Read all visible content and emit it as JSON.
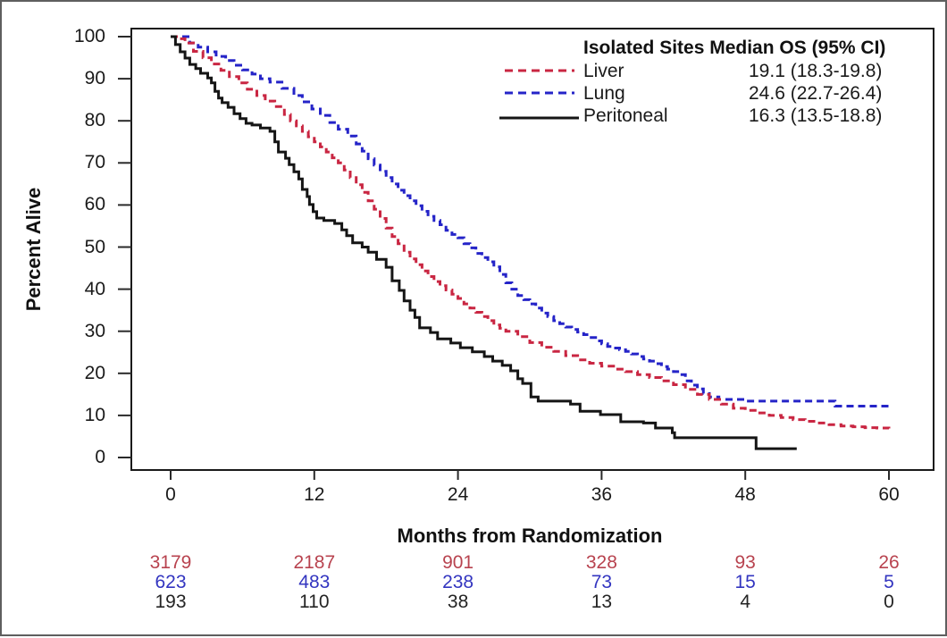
{
  "chart_data": {
    "type": "line",
    "subtype": "kaplan-meier-step",
    "title": "",
    "xlabel": "Months from Randomization",
    "ylabel": "Percent Alive",
    "xlim": [
      0,
      60
    ],
    "ylim": [
      0,
      100
    ],
    "x_ticks": [
      0,
      12,
      24,
      36,
      48,
      60
    ],
    "y_ticks": [
      100,
      90,
      80,
      70,
      60,
      50,
      40,
      30,
      20,
      10,
      0
    ],
    "grid": false,
    "legend_position": "top-right-inside",
    "legend": {
      "header": "Isolated Sites Median OS (95% CI)",
      "rows": [
        {
          "label": "Liver",
          "median_os": "19.1 (18.3-19.8)"
        },
        {
          "label": "Lung",
          "median_os": "24.6 (22.7-26.4)"
        },
        {
          "label": "Peritoneal",
          "median_os": "16.3 (13.5-18.8)"
        }
      ]
    },
    "series": [
      {
        "name": "Lung",
        "color": "#2524C8",
        "style": "dashed",
        "points": [
          [
            0,
            100
          ],
          [
            1,
            100
          ],
          [
            1.6,
            98.5
          ],
          [
            2.3,
            97.5
          ],
          [
            3.1,
            96.4
          ],
          [
            3.8,
            95.3
          ],
          [
            4.6,
            94.3
          ],
          [
            5.3,
            93.2
          ],
          [
            6,
            92.1
          ],
          [
            6.8,
            91.1
          ],
          [
            7.5,
            90
          ],
          [
            8.3,
            89.2
          ],
          [
            9.3,
            87.7
          ],
          [
            10.3,
            86
          ],
          [
            11,
            84.5
          ],
          [
            11.8,
            82.8
          ],
          [
            12.5,
            81.3
          ],
          [
            13.3,
            79.6
          ],
          [
            14,
            78
          ],
          [
            14.8,
            76.4
          ],
          [
            15.5,
            74.5
          ],
          [
            16,
            72.8
          ],
          [
            16.5,
            71
          ],
          [
            17,
            69.5
          ],
          [
            17.5,
            68
          ],
          [
            18,
            66.5
          ],
          [
            18.5,
            65
          ],
          [
            19,
            63.5
          ],
          [
            19.5,
            62.2
          ],
          [
            20,
            61
          ],
          [
            20.5,
            59.8
          ],
          [
            21,
            58.5
          ],
          [
            21.5,
            57.3
          ],
          [
            22,
            56.3
          ],
          [
            22.5,
            55.3
          ],
          [
            23,
            54
          ],
          [
            23.5,
            53
          ],
          [
            24,
            52.2
          ],
          [
            24.5,
            50.8
          ],
          [
            25,
            49.8
          ],
          [
            25.5,
            48.5
          ],
          [
            26,
            47.5
          ],
          [
            26.5,
            46.5
          ],
          [
            27,
            45.3
          ],
          [
            27.5,
            43.5
          ],
          [
            28,
            41.5
          ],
          [
            28.5,
            40
          ],
          [
            29,
            38.5
          ],
          [
            29.5,
            37.5
          ],
          [
            30,
            36.5
          ],
          [
            30.5,
            35.5
          ],
          [
            31,
            34.3
          ],
          [
            31.5,
            33.5
          ],
          [
            32,
            32.5
          ],
          [
            32.5,
            31.8
          ],
          [
            33,
            31
          ],
          [
            33.5,
            30.4
          ],
          [
            34,
            29.8
          ],
          [
            34.5,
            29.2
          ],
          [
            35,
            28.5
          ],
          [
            35.5,
            27.7
          ],
          [
            36,
            27
          ],
          [
            36.5,
            26.4
          ],
          [
            37,
            26
          ],
          [
            37.5,
            25.6
          ],
          [
            38,
            25.2
          ],
          [
            38.5,
            24.6
          ],
          [
            39,
            24
          ],
          [
            39.5,
            23.4
          ],
          [
            40,
            22.9
          ],
          [
            40.5,
            22.3
          ],
          [
            41,
            21.6
          ],
          [
            41.5,
            21
          ],
          [
            42,
            20.4
          ],
          [
            42.5,
            19.7
          ],
          [
            43,
            18.2
          ],
          [
            43.5,
            17.2
          ],
          [
            44,
            16.3
          ],
          [
            44.5,
            15.2
          ],
          [
            45,
            14.4
          ],
          [
            45.8,
            13.8
          ],
          [
            48.1,
            13.4
          ],
          [
            55.5,
            12.2
          ],
          [
            60,
            12.2
          ]
        ]
      },
      {
        "name": "Liver",
        "color": "#C92642",
        "style": "dashed",
        "points": [
          [
            0,
            100
          ],
          [
            0.6,
            99.5
          ],
          [
            1.2,
            98.5
          ],
          [
            1.9,
            96.5
          ],
          [
            2.7,
            95
          ],
          [
            3.4,
            93.5
          ],
          [
            4.2,
            92
          ],
          [
            4.9,
            90.5
          ],
          [
            5.7,
            89
          ],
          [
            6.4,
            87.5
          ],
          [
            7.2,
            86
          ],
          [
            7.9,
            84.7
          ],
          [
            8.7,
            83.4
          ],
          [
            9.5,
            81.5
          ],
          [
            10,
            80
          ],
          [
            10.5,
            78.8
          ],
          [
            11,
            77.5
          ],
          [
            11.5,
            76.2
          ],
          [
            12,
            75
          ],
          [
            12.5,
            73.8
          ],
          [
            13,
            72.6
          ],
          [
            13.5,
            71.2
          ],
          [
            14,
            70
          ],
          [
            14.5,
            68.3
          ],
          [
            15,
            66.5
          ],
          [
            15.5,
            64.8
          ],
          [
            16,
            63
          ],
          [
            16.5,
            61
          ],
          [
            17,
            59
          ],
          [
            17.5,
            56.8
          ],
          [
            18,
            54.5
          ],
          [
            18.5,
            52.5
          ],
          [
            19,
            50.8
          ],
          [
            19.5,
            48.8
          ],
          [
            20,
            47.2
          ],
          [
            20.5,
            45.8
          ],
          [
            21,
            44.3
          ],
          [
            21.5,
            43
          ],
          [
            22,
            41.8
          ],
          [
            22.5,
            40.8
          ],
          [
            23,
            39.8
          ],
          [
            23.5,
            38.8
          ],
          [
            24,
            37.8
          ],
          [
            24.5,
            36.5
          ],
          [
            25,
            35.5
          ],
          [
            25.5,
            34.5
          ],
          [
            26,
            33.5
          ],
          [
            26.5,
            32.5
          ],
          [
            27,
            31.5
          ],
          [
            27.5,
            30.7
          ],
          [
            28,
            30
          ],
          [
            29,
            28.7
          ],
          [
            30,
            27.3
          ],
          [
            31,
            26.2
          ],
          [
            32,
            25.2
          ],
          [
            33,
            24.2
          ],
          [
            34,
            23.2
          ],
          [
            35,
            22.4
          ],
          [
            36,
            21.7
          ],
          [
            37,
            21
          ],
          [
            38,
            20.4
          ],
          [
            39,
            19.7
          ],
          [
            40,
            19
          ],
          [
            41,
            18.2
          ],
          [
            42,
            17.3
          ],
          [
            43,
            16.2
          ],
          [
            44,
            15
          ],
          [
            45,
            13.8
          ],
          [
            46,
            12.7
          ],
          [
            47,
            11.7
          ],
          [
            48,
            11.2
          ],
          [
            49,
            10.6
          ],
          [
            50,
            10
          ],
          [
            51,
            9.5
          ],
          [
            52,
            9
          ],
          [
            53,
            8.6
          ],
          [
            54,
            8.2
          ],
          [
            55,
            7.8
          ],
          [
            56,
            7.5
          ],
          [
            57,
            7.3
          ],
          [
            58,
            7.1
          ],
          [
            59,
            7
          ],
          [
            60,
            6.9
          ]
        ]
      },
      {
        "name": "Peritoneal",
        "color": "#151515",
        "style": "solid",
        "points": [
          [
            0,
            100
          ],
          [
            0.4,
            98.1
          ],
          [
            0.8,
            96.4
          ],
          [
            1.2,
            94.9
          ],
          [
            1.6,
            93.4
          ],
          [
            2.1,
            92.4
          ],
          [
            2.5,
            91.3
          ],
          [
            3.1,
            90.2
          ],
          [
            3.4,
            89
          ],
          [
            3.7,
            87
          ],
          [
            4,
            85.4
          ],
          [
            4.3,
            84.3
          ],
          [
            4.8,
            83.2
          ],
          [
            5.3,
            81.7
          ],
          [
            5.8,
            80.5
          ],
          [
            6.3,
            79.4
          ],
          [
            6.8,
            79
          ],
          [
            7.5,
            78.3
          ],
          [
            8.3,
            77.5
          ],
          [
            8.7,
            75
          ],
          [
            9,
            72.6
          ],
          [
            9.6,
            71.1
          ],
          [
            9.9,
            69.6
          ],
          [
            10.3,
            67.9
          ],
          [
            10.7,
            66.2
          ],
          [
            11,
            63.7
          ],
          [
            11.4,
            62
          ],
          [
            11.6,
            60.1
          ],
          [
            11.9,
            58.4
          ],
          [
            12.2,
            56.9
          ],
          [
            12.8,
            56.3
          ],
          [
            13.7,
            55.6
          ],
          [
            14.3,
            54.1
          ],
          [
            14.7,
            52.7
          ],
          [
            15.2,
            51
          ],
          [
            16,
            50
          ],
          [
            16.5,
            48.8
          ],
          [
            17.2,
            47.1
          ],
          [
            18,
            45.2
          ],
          [
            18.5,
            42
          ],
          [
            19.1,
            39.7
          ],
          [
            19.5,
            37.2
          ],
          [
            20,
            35
          ],
          [
            20.4,
            33.3
          ],
          [
            20.8,
            30.8
          ],
          [
            21.7,
            29.7
          ],
          [
            22.3,
            28.2
          ],
          [
            23.4,
            27.2
          ],
          [
            24.2,
            26.1
          ],
          [
            25.2,
            25.1
          ],
          [
            26.2,
            24
          ],
          [
            26.9,
            22.9
          ],
          [
            27.7,
            21.9
          ],
          [
            28.4,
            20.6
          ],
          [
            29,
            18.7
          ],
          [
            29.4,
            17.6
          ],
          [
            30.1,
            14.4
          ],
          [
            30.7,
            13.4
          ],
          [
            33.4,
            12.7
          ],
          [
            34.2,
            11
          ],
          [
            35.9,
            10.2
          ],
          [
            37.6,
            8.5
          ],
          [
            39.5,
            8.2
          ],
          [
            40.5,
            7
          ],
          [
            41.9,
            5.9
          ],
          [
            42.1,
            4.7
          ],
          [
            48.7,
            4.7
          ],
          [
            48.9,
            2.1
          ],
          [
            52.3,
            2.1
          ]
        ]
      }
    ],
    "at_risk": {
      "columns": [
        0,
        12,
        24,
        36,
        48,
        60
      ],
      "rows": [
        {
          "group": "Liver",
          "color": "#B8434F",
          "values": [
            "3179",
            "2187",
            "901",
            "328",
            "93",
            "26"
          ]
        },
        {
          "group": "Lung",
          "color": "#3335C0",
          "values": [
            "623",
            "483",
            "238",
            "73",
            "15",
            "5"
          ]
        },
        {
          "group": "Peritoneal",
          "color": "#242424",
          "values": [
            "193",
            "110",
            "38",
            "13",
            "4",
            "0"
          ]
        }
      ]
    }
  }
}
